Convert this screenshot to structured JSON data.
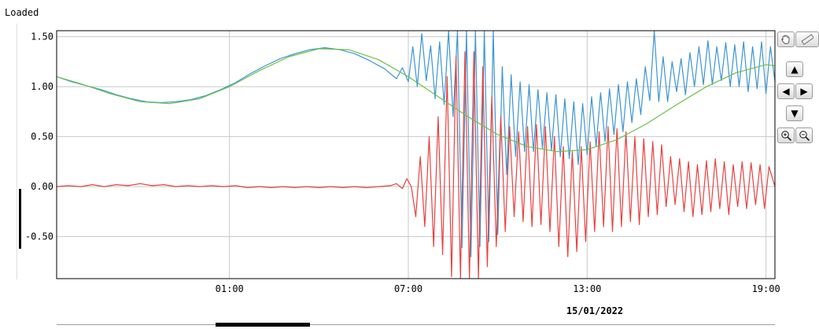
{
  "status": "Loaded",
  "date_label": "15/01/2022",
  "icons": {
    "pan": "hand-icon",
    "measure": "ruler-icon",
    "up": "arrow-up-icon",
    "left": "arrow-left-icon",
    "right": "arrow-right-icon",
    "down": "arrow-down-icon",
    "zoom_in": "zoom-in-icon",
    "zoom_out": "zoom-out-icon"
  },
  "colors": {
    "blue": "#3c95d4",
    "red": "#e8413f",
    "green": "#6cc04a",
    "grid": "#c8c8c8"
  },
  "chart_data": {
    "type": "line",
    "grid": true,
    "ylim": [
      -0.92,
      1.56
    ],
    "y_ticks": [
      {
        "value": 1.5,
        "label": "1.50"
      },
      {
        "value": 1.0,
        "label": "1.00"
      },
      {
        "value": 0.5,
        "label": "0.50"
      },
      {
        "value": 0.0,
        "label": "0.00"
      },
      {
        "value": -0.5,
        "label": "-0.50"
      }
    ],
    "x_range_hours": [
      -4.8,
      19.3
    ],
    "x_ticks": [
      {
        "hour": 1,
        "label": "01:00"
      },
      {
        "hour": 7,
        "label": "07:00"
      },
      {
        "hour": 13,
        "label": "13:00"
      },
      {
        "hour": 19,
        "label": "19:00"
      }
    ],
    "series": [
      {
        "id": "blue",
        "color": "#3c95d4",
        "points": [
          [
            -4.8,
            1.1
          ],
          [
            -4.3,
            1.05
          ],
          [
            -3.8,
            1.01
          ],
          [
            -3.3,
            0.97
          ],
          [
            -2.8,
            0.92
          ],
          [
            -2.3,
            0.88
          ],
          [
            -1.8,
            0.85
          ],
          [
            -1.3,
            0.84
          ],
          [
            -0.8,
            0.85
          ],
          [
            -0.3,
            0.87
          ],
          [
            0.2,
            0.91
          ],
          [
            0.7,
            0.97
          ],
          [
            1.2,
            1.04
          ],
          [
            1.7,
            1.13
          ],
          [
            2.2,
            1.21
          ],
          [
            2.7,
            1.28
          ],
          [
            3.2,
            1.33
          ],
          [
            3.7,
            1.37
          ],
          [
            4.2,
            1.39
          ],
          [
            4.7,
            1.37
          ],
          [
            5.2,
            1.33
          ],
          [
            5.7,
            1.26
          ],
          [
            6.2,
            1.18
          ],
          [
            6.6,
            1.08
          ],
          [
            6.8,
            1.19
          ],
          [
            7.0,
            1.05
          ],
          [
            7.15,
            1.4
          ],
          [
            7.3,
            1.0
          ],
          [
            7.45,
            1.53
          ],
          [
            7.6,
            1.06
          ],
          [
            7.75,
            1.41
          ],
          [
            7.9,
            0.88
          ],
          [
            8.05,
            1.45
          ],
          [
            8.2,
            0.82
          ],
          [
            8.35,
            1.56
          ],
          [
            8.5,
            0.7
          ],
          [
            8.65,
            1.56
          ],
          [
            8.8,
            -0.61
          ],
          [
            8.95,
            1.56
          ],
          [
            9.1,
            -0.7
          ],
          [
            9.25,
            1.56
          ],
          [
            9.4,
            -0.6
          ],
          [
            9.55,
            1.56
          ],
          [
            9.7,
            -0.55
          ],
          [
            9.85,
            1.56
          ],
          [
            10.0,
            -0.48
          ],
          [
            10.15,
            1.2
          ],
          [
            10.3,
            0.12
          ],
          [
            10.45,
            1.12
          ],
          [
            10.6,
            0.3
          ],
          [
            10.75,
            1.05
          ],
          [
            10.9,
            0.35
          ],
          [
            11.05,
            1.02
          ],
          [
            11.2,
            0.35
          ],
          [
            11.35,
            0.97
          ],
          [
            11.5,
            0.38
          ],
          [
            11.65,
            0.94
          ],
          [
            11.8,
            0.36
          ],
          [
            11.95,
            0.92
          ],
          [
            12.1,
            0.3
          ],
          [
            12.25,
            0.88
          ],
          [
            12.4,
            0.28
          ],
          [
            12.55,
            0.85
          ],
          [
            12.7,
            0.22
          ],
          [
            12.85,
            0.83
          ],
          [
            13.0,
            0.32
          ],
          [
            13.15,
            0.9
          ],
          [
            13.3,
            0.4
          ],
          [
            13.45,
            0.94
          ],
          [
            13.6,
            0.45
          ],
          [
            13.75,
            0.98
          ],
          [
            13.9,
            0.52
          ],
          [
            14.05,
            1.02
          ],
          [
            14.2,
            0.55
          ],
          [
            14.35,
            1.05
          ],
          [
            14.5,
            0.64
          ],
          [
            14.65,
            1.08
          ],
          [
            14.8,
            0.72
          ],
          [
            14.95,
            1.2
          ],
          [
            15.1,
            0.86
          ],
          [
            15.25,
            1.56
          ],
          [
            15.4,
            0.85
          ],
          [
            15.55,
            1.3
          ],
          [
            15.7,
            0.85
          ],
          [
            15.85,
            1.25
          ],
          [
            16.0,
            0.95
          ],
          [
            16.15,
            1.28
          ],
          [
            16.3,
            0.92
          ],
          [
            16.45,
            1.34
          ],
          [
            16.6,
            1.0
          ],
          [
            16.75,
            1.4
          ],
          [
            16.9,
            1.02
          ],
          [
            17.05,
            1.46
          ],
          [
            17.2,
            1.02
          ],
          [
            17.35,
            1.4
          ],
          [
            17.5,
            1.06
          ],
          [
            17.65,
            1.44
          ],
          [
            17.8,
            1.0
          ],
          [
            17.95,
            1.42
          ],
          [
            18.1,
            1.0
          ],
          [
            18.25,
            1.45
          ],
          [
            18.4,
            0.95
          ],
          [
            18.55,
            1.4
          ],
          [
            18.7,
            0.98
          ],
          [
            18.85,
            1.45
          ],
          [
            19.0,
            0.93
          ],
          [
            19.15,
            1.4
          ],
          [
            19.3,
            1.05
          ]
        ]
      },
      {
        "id": "red",
        "color": "#e8413f",
        "points": [
          [
            -4.8,
            0.0
          ],
          [
            -4.4,
            0.01
          ],
          [
            -4.0,
            0.0
          ],
          [
            -3.6,
            0.02
          ],
          [
            -3.2,
            0.0
          ],
          [
            -2.8,
            0.02
          ],
          [
            -2.4,
            0.01
          ],
          [
            -2.0,
            0.03
          ],
          [
            -1.6,
            0.01
          ],
          [
            -1.2,
            0.02
          ],
          [
            -0.8,
            0.0
          ],
          [
            -0.4,
            0.01
          ],
          [
            0.0,
            0.0
          ],
          [
            0.4,
            0.01
          ],
          [
            0.8,
            0.0
          ],
          [
            1.2,
            0.01
          ],
          [
            1.6,
            -0.01
          ],
          [
            2.0,
            0.0
          ],
          [
            2.4,
            -0.01
          ],
          [
            2.8,
            0.0
          ],
          [
            3.2,
            -0.01
          ],
          [
            3.6,
            0.0
          ],
          [
            4.0,
            -0.01
          ],
          [
            4.4,
            0.0
          ],
          [
            4.8,
            -0.01
          ],
          [
            5.2,
            0.0
          ],
          [
            5.6,
            -0.01
          ],
          [
            6.0,
            0.0
          ],
          [
            6.4,
            0.01
          ],
          [
            6.6,
            0.03
          ],
          [
            6.8,
            -0.02
          ],
          [
            6.95,
            0.08
          ],
          [
            7.1,
            0.0
          ],
          [
            7.25,
            -0.3
          ],
          [
            7.4,
            0.3
          ],
          [
            7.55,
            -0.4
          ],
          [
            7.7,
            0.5
          ],
          [
            7.85,
            -0.6
          ],
          [
            8.0,
            0.7
          ],
          [
            8.15,
            -0.68
          ],
          [
            8.3,
            1.1
          ],
          [
            8.45,
            -0.9
          ],
          [
            8.6,
            1.3
          ],
          [
            8.75,
            -0.92
          ],
          [
            8.9,
            1.35
          ],
          [
            9.05,
            -0.92
          ],
          [
            9.2,
            1.35
          ],
          [
            9.35,
            -0.92
          ],
          [
            9.5,
            1.2
          ],
          [
            9.65,
            -0.8
          ],
          [
            9.8,
            0.9
          ],
          [
            9.95,
            -0.6
          ],
          [
            10.1,
            0.7
          ],
          [
            10.25,
            -0.45
          ],
          [
            10.4,
            0.6
          ],
          [
            10.55,
            -0.3
          ],
          [
            10.7,
            0.55
          ],
          [
            10.85,
            -0.35
          ],
          [
            11.0,
            0.6
          ],
          [
            11.15,
            -0.4
          ],
          [
            11.3,
            0.62
          ],
          [
            11.45,
            -0.38
          ],
          [
            11.6,
            0.6
          ],
          [
            11.75,
            -0.45
          ],
          [
            11.9,
            0.5
          ],
          [
            12.05,
            -0.6
          ],
          [
            12.2,
            0.4
          ],
          [
            12.35,
            -0.7
          ],
          [
            12.5,
            0.35
          ],
          [
            12.65,
            -0.65
          ],
          [
            12.8,
            0.4
          ],
          [
            12.95,
            -0.55
          ],
          [
            13.1,
            0.45
          ],
          [
            13.25,
            -0.45
          ],
          [
            13.4,
            0.55
          ],
          [
            13.55,
            -0.4
          ],
          [
            13.7,
            0.6
          ],
          [
            13.85,
            -0.45
          ],
          [
            14.0,
            0.58
          ],
          [
            14.15,
            -0.4
          ],
          [
            14.3,
            0.55
          ],
          [
            14.45,
            -0.35
          ],
          [
            14.6,
            0.5
          ],
          [
            14.75,
            -0.38
          ],
          [
            14.9,
            0.48
          ],
          [
            15.05,
            -0.3
          ],
          [
            15.2,
            0.45
          ],
          [
            15.35,
            -0.28
          ],
          [
            15.5,
            0.42
          ],
          [
            15.65,
            -0.2
          ],
          [
            15.8,
            0.3
          ],
          [
            15.95,
            -0.18
          ],
          [
            16.1,
            0.28
          ],
          [
            16.25,
            -0.25
          ],
          [
            16.4,
            0.25
          ],
          [
            16.55,
            -0.3
          ],
          [
            16.7,
            0.22
          ],
          [
            16.85,
            -0.28
          ],
          [
            17.0,
            0.26
          ],
          [
            17.15,
            -0.25
          ],
          [
            17.3,
            0.28
          ],
          [
            17.45,
            -0.22
          ],
          [
            17.6,
            0.25
          ],
          [
            17.75,
            -0.28
          ],
          [
            17.9,
            0.22
          ],
          [
            18.05,
            -0.2
          ],
          [
            18.2,
            0.25
          ],
          [
            18.35,
            -0.22
          ],
          [
            18.5,
            0.24
          ],
          [
            18.65,
            -0.18
          ],
          [
            18.8,
            0.22
          ],
          [
            18.95,
            -0.22
          ],
          [
            19.1,
            0.2
          ],
          [
            19.3,
            0.0
          ]
        ]
      },
      {
        "id": "green",
        "color": "#6cc04a",
        "points": [
          [
            -4.8,
            1.1
          ],
          [
            -4.0,
            1.03
          ],
          [
            -3.0,
            0.93
          ],
          [
            -2.0,
            0.85
          ],
          [
            -1.0,
            0.83
          ],
          [
            0.0,
            0.88
          ],
          [
            1.0,
            1.0
          ],
          [
            2.0,
            1.16
          ],
          [
            3.0,
            1.3
          ],
          [
            4.0,
            1.38
          ],
          [
            5.0,
            1.37
          ],
          [
            6.0,
            1.27
          ],
          [
            7.0,
            1.1
          ],
          [
            8.0,
            0.9
          ],
          [
            9.0,
            0.7
          ],
          [
            10.0,
            0.52
          ],
          [
            11.0,
            0.4
          ],
          [
            12.0,
            0.35
          ],
          [
            13.0,
            0.37
          ],
          [
            14.0,
            0.47
          ],
          [
            15.0,
            0.63
          ],
          [
            16.0,
            0.82
          ],
          [
            17.0,
            1.0
          ],
          [
            18.0,
            1.14
          ],
          [
            19.0,
            1.22
          ],
          [
            19.3,
            1.21
          ]
        ]
      }
    ]
  }
}
